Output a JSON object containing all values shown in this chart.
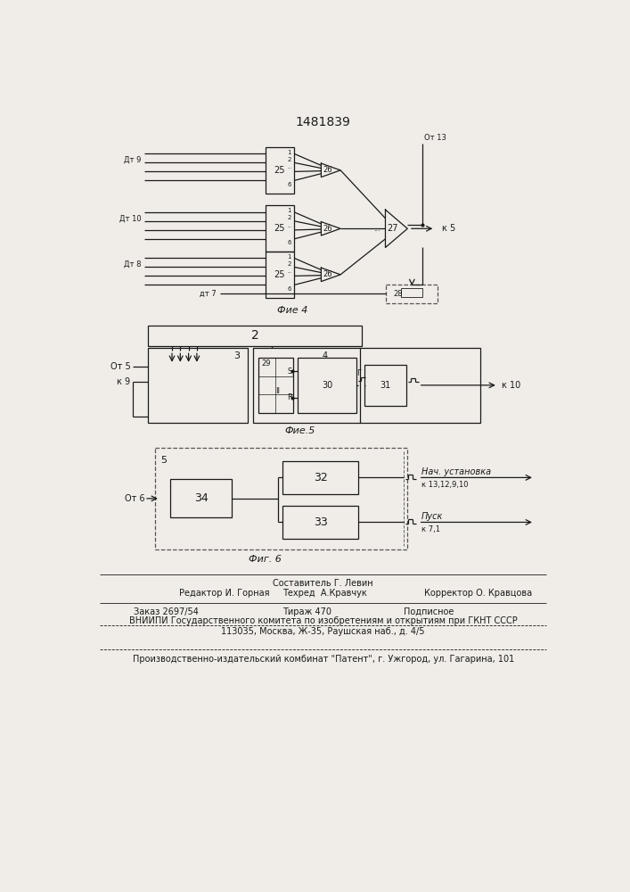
{
  "title": "1481839",
  "bg_color": "#f0ede8",
  "line_color": "#1a1a1a",
  "fig4_caption": "Фие 4",
  "fig5_caption": "Фие.5",
  "fig6_caption": "Фиг. 6"
}
